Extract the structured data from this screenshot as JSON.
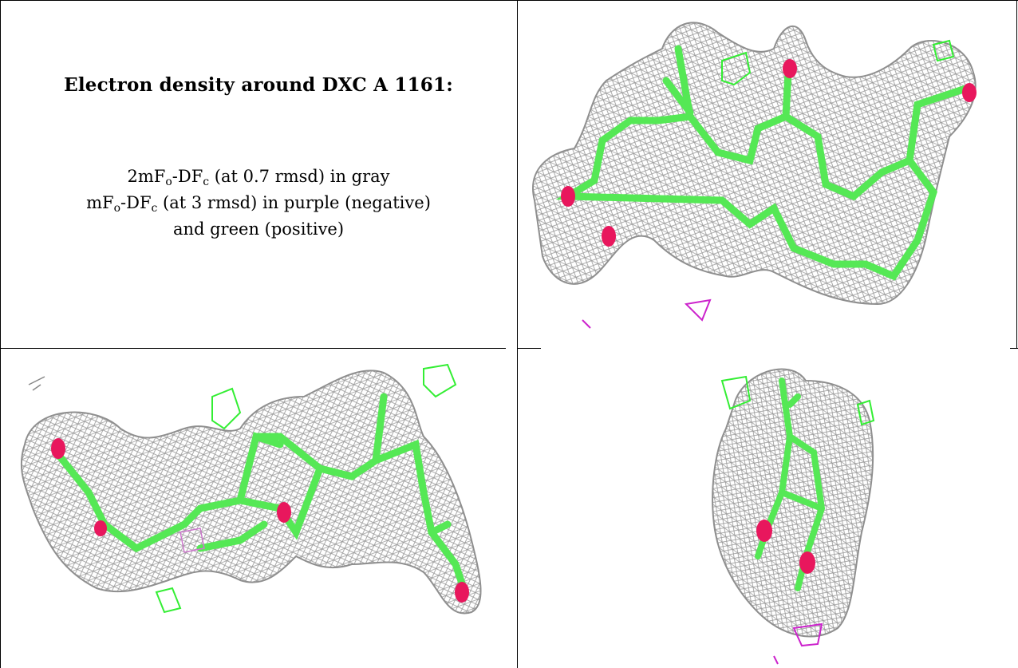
{
  "caption": {
    "title": "Electron density around DXC A 1161:",
    "line1": {
      "pre": "2mF",
      "s1": "o",
      "mid": "-DF",
      "s2": "c",
      "post": " (at 0.7 rmsd) in gray"
    },
    "line2": {
      "pre": "mF",
      "s1": "o",
      "mid": "-DF",
      "s2": "c",
      "post": " (at 3 rmsd) in purple (negative)"
    },
    "line3": "and green (positive)"
  },
  "colors": {
    "mesh_gray": "#9a9a9a",
    "positive_green": "#33ee33",
    "negative_purple": "#cc22cc",
    "stick_green": "#55e855",
    "oxygen_red": "#e8175d"
  },
  "panels": [
    {
      "view": "top-right",
      "icon": "density-view-1"
    },
    {
      "view": "bottom-left",
      "icon": "density-view-2"
    },
    {
      "view": "bottom-right",
      "icon": "density-view-3"
    }
  ]
}
